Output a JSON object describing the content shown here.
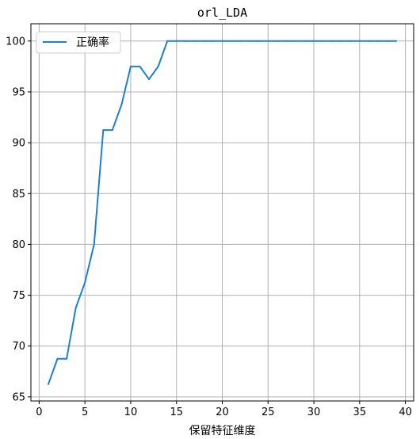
{
  "chart_data": {
    "type": "line",
    "title": "orl_LDA",
    "xlabel": "保留特征维度",
    "ylabel": "",
    "xlim": [
      -0.9,
      40.9
    ],
    "ylim": [
      64.6,
      101.7
    ],
    "xticks": [
      0,
      5,
      10,
      15,
      20,
      25,
      30,
      35,
      40
    ],
    "yticks": [
      65,
      70,
      75,
      80,
      85,
      90,
      95,
      100
    ],
    "grid": true,
    "legend_position": "upper-left",
    "series": [
      {
        "name": "正确率",
        "color": "#1f7fd2",
        "x": [
          1,
          2,
          3,
          4,
          5,
          6,
          7,
          8,
          9,
          10,
          11,
          12,
          13,
          14,
          15,
          16,
          17,
          18,
          19,
          20,
          21,
          22,
          23,
          24,
          25,
          26,
          27,
          28,
          29,
          30,
          31,
          32,
          33,
          34,
          35,
          36,
          37,
          38,
          39
        ],
        "y": [
          66.25,
          68.75,
          68.75,
          73.75,
          76.25,
          80,
          91.25,
          91.25,
          93.75,
          97.5,
          97.5,
          96.25,
          97.5,
          100,
          100,
          100,
          100,
          100,
          100,
          100,
          100,
          100,
          100,
          100,
          100,
          100,
          100,
          100,
          100,
          100,
          100,
          100,
          100,
          100,
          100,
          100,
          100,
          100,
          100
        ]
      }
    ]
  }
}
